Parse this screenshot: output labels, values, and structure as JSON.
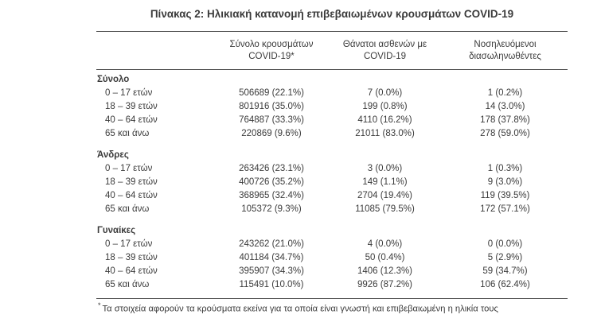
{
  "title": "Πίνακας 2: Ηλικιακή κατανομή επιβεβαιωμένων κρουσμάτων COVID-19",
  "table": {
    "columns": [
      {
        "line1": "",
        "line2": ""
      },
      {
        "line1": "Σύνολο κρουσμάτων",
        "line2": "COVID-19*"
      },
      {
        "line1": "Θάνατοι ασθενών με",
        "line2": "COVID-19"
      },
      {
        "line1": "Νοσηλευόμενοι",
        "line2": "διασωληνωθέντες"
      }
    ],
    "sections": [
      {
        "label": "Σύνολο",
        "rows": [
          {
            "age": "0 – 17 ετών",
            "cases": "506689 (22.1%)",
            "deaths": "7 (0.0%)",
            "intubated": "1 (0.2%)"
          },
          {
            "age": "18 – 39 ετών",
            "cases": "801916 (35.0%)",
            "deaths": "199 (0.8%)",
            "intubated": "14 (3.0%)"
          },
          {
            "age": "40 – 64 ετών",
            "cases": "764887 (33.3%)",
            "deaths": "4110 (16.2%)",
            "intubated": "178 (37.8%)"
          },
          {
            "age": "65 και άνω",
            "cases": "220869 (9.6%)",
            "deaths": "21011 (83.0%)",
            "intubated": "278 (59.0%)"
          }
        ]
      },
      {
        "label": "Άνδρες",
        "rows": [
          {
            "age": "0 – 17 ετών",
            "cases": "263426 (23.1%)",
            "deaths": "3 (0.0%)",
            "intubated": "1 (0.3%)"
          },
          {
            "age": "18 – 39 ετών",
            "cases": "400726 (35.2%)",
            "deaths": "149 (1.1%)",
            "intubated": "9 (3.0%)"
          },
          {
            "age": "40 – 64 ετών",
            "cases": "368965 (32.4%)",
            "deaths": "2704 (19.4%)",
            "intubated": "119 (39.5%)"
          },
          {
            "age": "65 και άνω",
            "cases": "105372 (9.3%)",
            "deaths": "11085 (79.5%)",
            "intubated": "172 (57.1%)"
          }
        ]
      },
      {
        "label": "Γυναίκες",
        "rows": [
          {
            "age": "0 – 17 ετών",
            "cases": "243262 (21.0%)",
            "deaths": "4 (0.0%)",
            "intubated": "0 (0.0%)"
          },
          {
            "age": "18 – 39 ετών",
            "cases": "401184 (34.7%)",
            "deaths": "50 (0.4%)",
            "intubated": "5 (2.9%)"
          },
          {
            "age": "40 – 64 ετών",
            "cases": "395907 (34.3%)",
            "deaths": "1406 (12.3%)",
            "intubated": "59 (34.7%)"
          },
          {
            "age": "65 και άνω",
            "cases": "115491 (10.0%)",
            "deaths": "9926 (87.2%)",
            "intubated": "106 (62.4%)"
          }
        ]
      }
    ]
  },
  "footnote": {
    "marker": "*",
    "text": "Τα στοιχεία αφορούν τα κρούσματα εκείνα για τα οποία είναι γνωστή και επιβεβαιωμένη η ηλικία τους"
  },
  "colors": {
    "text": "#3b3b3b",
    "border": "#474747",
    "background": "#ffffff"
  }
}
